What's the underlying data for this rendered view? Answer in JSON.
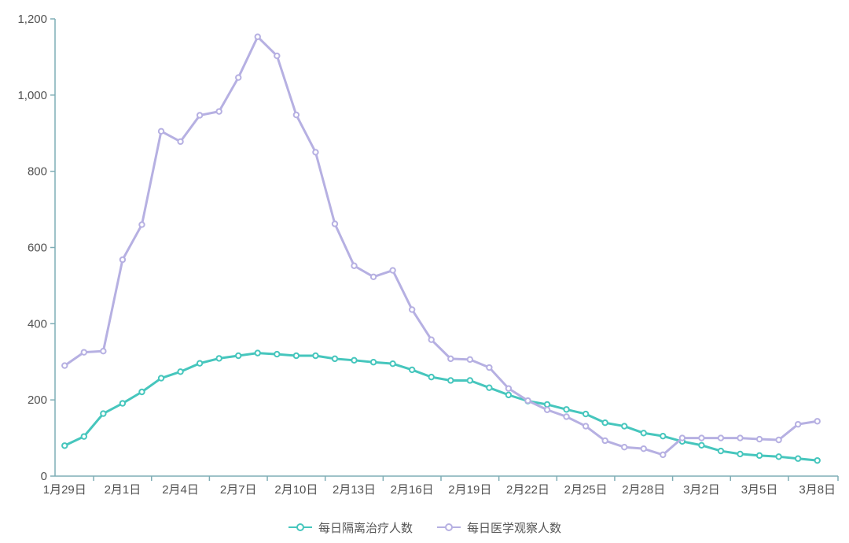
{
  "chart_data": {
    "type": "line",
    "title": "",
    "xlabel": "",
    "ylabel": "",
    "ylim": [
      0,
      1200
    ],
    "grid": false,
    "legend_position": "bottom",
    "colors": {
      "axis": "#7fadb5",
      "text": "#515151",
      "background": "#ffffff",
      "marker_fill": "#ffffff"
    },
    "y_ticks": [
      0,
      200,
      400,
      600,
      800,
      1000,
      1200
    ],
    "y_tick_labels": [
      "0",
      "200",
      "400",
      "600",
      "800",
      "1,000",
      "1,200"
    ],
    "label_every": 3,
    "x": [
      "1月29日",
      "1月30日",
      "1月31日",
      "2月1日",
      "2月2日",
      "2月3日",
      "2月4日",
      "2月5日",
      "2月6日",
      "2月7日",
      "2月8日",
      "2月9日",
      "2月10日",
      "2月11日",
      "2月12日",
      "2月13日",
      "2月14日",
      "2月15日",
      "2月16日",
      "2月17日",
      "2月18日",
      "2月19日",
      "2月20日",
      "2月21日",
      "2月22日",
      "2月23日",
      "2月24日",
      "2月25日",
      "2月26日",
      "2月27日",
      "2月28日",
      "2月29日",
      "3月1日",
      "3月2日",
      "3月3日",
      "3月4日",
      "3月5日",
      "3月6日",
      "3月7日",
      "3月8日"
    ],
    "x_tick_labels": [
      "1月29日",
      "2月1日",
      "2月4日",
      "2月7日",
      "2月10日",
      "2月13日",
      "2月16日",
      "2月19日",
      "2月22日",
      "2月25日",
      "2月28日",
      "3月2日",
      "3月5日",
      "3月8日"
    ],
    "series": [
      {
        "name": "每日隔离治疗人数",
        "color": "#46c6bd",
        "values": [
          80,
          104,
          164,
          191,
          221,
          257,
          274,
          296,
          309,
          316,
          323,
          320,
          316,
          316,
          308,
          304,
          299,
          295,
          279,
          260,
          251,
          251,
          232,
          213,
          197,
          188,
          175,
          163,
          140,
          131,
          113,
          105,
          91,
          81,
          66,
          58,
          54,
          51,
          46,
          41
        ]
      },
      {
        "name": "每日医学观察人数",
        "color": "#b6b0e2",
        "values": [
          290,
          325,
          328,
          568,
          660,
          905,
          878,
          947,
          957,
          1046,
          1153,
          1103,
          948,
          850,
          662,
          552,
          523,
          540,
          437,
          358,
          308,
          306,
          285,
          230,
          198,
          174,
          156,
          131,
          93,
          76,
          72,
          56,
          100,
          100,
          100,
          100,
          97,
          95,
          136,
          144
        ]
      }
    ]
  }
}
